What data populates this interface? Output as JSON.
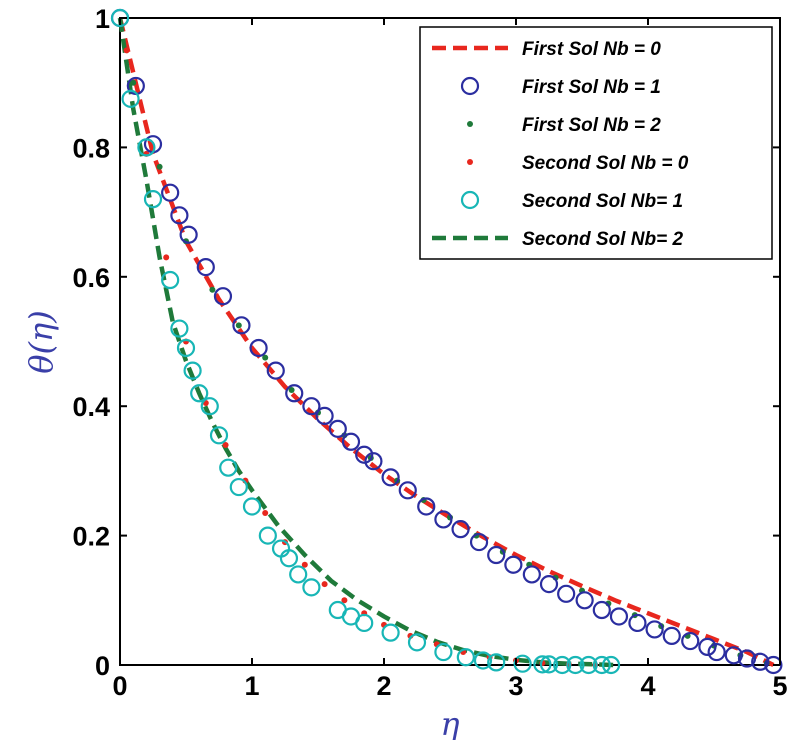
{
  "chart_data": {
    "type": "line",
    "title": "",
    "xlabel": "η",
    "ylabel": "θ(η)",
    "xlim": [
      0,
      5
    ],
    "ylim": [
      0,
      1
    ],
    "xticks": [
      "0",
      "1",
      "2",
      "3",
      "4",
      "5"
    ],
    "yticks": [
      "0",
      "0.2",
      "0.4",
      "0.6",
      "0.8",
      "1"
    ],
    "grid": false,
    "legend_position": "top-right",
    "colors": {
      "first_nb0": "#e8271e",
      "first_nb1": "#2b2ea0",
      "first_nb2": "#1f7a3a",
      "second_nb0": "#e8271e",
      "second_nb1": "#18b6b6",
      "second_nb2": "#1f7a3a"
    },
    "series": [
      {
        "name": "First Sol    Nb = 0",
        "style": "dashed-line",
        "x": [
          0,
          0.25,
          0.5,
          0.75,
          1.0,
          1.25,
          1.5,
          1.75,
          2.0,
          2.25,
          2.5,
          2.75,
          3.0,
          3.25,
          3.5,
          3.75,
          4.0,
          4.25,
          4.5,
          4.75,
          4.95
        ],
        "y": [
          1.0,
          0.79,
          0.655,
          0.565,
          0.49,
          0.43,
          0.38,
          0.335,
          0.295,
          0.26,
          0.228,
          0.198,
          0.17,
          0.145,
          0.122,
          0.1,
          0.08,
          0.06,
          0.04,
          0.02,
          0.0
        ]
      },
      {
        "name": "First Sol    Nb = 1",
        "style": "circle-markers",
        "x": [
          0.0,
          0.12,
          0.25,
          0.38,
          0.45,
          0.52,
          0.65,
          0.78,
          0.92,
          1.05,
          1.18,
          1.32,
          1.45,
          1.55,
          1.65,
          1.75,
          1.85,
          1.92,
          2.05,
          2.18,
          2.32,
          2.45,
          2.58,
          2.72,
          2.85,
          2.98,
          3.12,
          3.25,
          3.38,
          3.52,
          3.65,
          3.78,
          3.92,
          4.05,
          4.18,
          4.32,
          4.45,
          4.52,
          4.65,
          4.75,
          4.85,
          4.95
        ],
        "y": [
          1.0,
          0.895,
          0.805,
          0.73,
          0.695,
          0.665,
          0.615,
          0.57,
          0.525,
          0.49,
          0.455,
          0.42,
          0.4,
          0.385,
          0.365,
          0.345,
          0.325,
          0.315,
          0.29,
          0.27,
          0.245,
          0.225,
          0.21,
          0.19,
          0.17,
          0.155,
          0.14,
          0.125,
          0.11,
          0.1,
          0.085,
          0.075,
          0.065,
          0.055,
          0.045,
          0.037,
          0.028,
          0.02,
          0.015,
          0.01,
          0.005,
          0.0
        ]
      },
      {
        "name": "First Sol    Nb = 2",
        "style": "dot-markers",
        "x": [
          0.1,
          0.3,
          0.5,
          0.7,
          0.9,
          1.1,
          1.3,
          1.5,
          1.7,
          1.9,
          2.1,
          2.3,
          2.5,
          2.7,
          2.9,
          3.1,
          3.3,
          3.5,
          3.7,
          3.9,
          4.1,
          4.3,
          4.5,
          4.7,
          4.9
        ],
        "y": [
          0.9,
          0.77,
          0.655,
          0.58,
          0.525,
          0.475,
          0.425,
          0.39,
          0.355,
          0.32,
          0.285,
          0.255,
          0.228,
          0.2,
          0.175,
          0.155,
          0.135,
          0.115,
          0.095,
          0.077,
          0.06,
          0.045,
          0.03,
          0.015,
          0.003
        ]
      },
      {
        "name": "Second Sol Nb = 0",
        "style": "dot-markers",
        "x": [
          0.05,
          0.2,
          0.35,
          0.5,
          0.65,
          0.8,
          0.95,
          1.1,
          1.25,
          1.4,
          1.55,
          1.7,
          1.85,
          2.0,
          2.2,
          2.4,
          2.6,
          2.8,
          3.0,
          3.2,
          3.4,
          3.6
        ],
        "y": [
          0.95,
          0.79,
          0.63,
          0.5,
          0.405,
          0.34,
          0.285,
          0.235,
          0.19,
          0.155,
          0.125,
          0.1,
          0.08,
          0.062,
          0.045,
          0.032,
          0.02,
          0.012,
          0.007,
          0.003,
          0.001,
          0.0
        ]
      },
      {
        "name": "Second Sol Nb= 1",
        "style": "circle-markers",
        "x": [
          0.0,
          0.08,
          0.2,
          0.25,
          0.38,
          0.45,
          0.5,
          0.55,
          0.6,
          0.68,
          0.75,
          0.82,
          0.9,
          1.0,
          1.12,
          1.22,
          1.28,
          1.35,
          1.45,
          1.65,
          1.75,
          1.85,
          2.05,
          2.25,
          2.45,
          2.62,
          2.75,
          2.85,
          3.05,
          3.2,
          3.25,
          3.35,
          3.45,
          3.55,
          3.65,
          3.72
        ],
        "y": [
          1.0,
          0.875,
          0.8,
          0.72,
          0.595,
          0.52,
          0.49,
          0.455,
          0.42,
          0.4,
          0.355,
          0.305,
          0.275,
          0.245,
          0.2,
          0.18,
          0.165,
          0.14,
          0.12,
          0.085,
          0.075,
          0.065,
          0.05,
          0.035,
          0.02,
          0.012,
          0.007,
          0.004,
          0.002,
          0.001,
          0.001,
          0.0,
          0.0,
          0.0,
          0.0,
          0.0
        ]
      },
      {
        "name": "Second Sol Nb= 2",
        "style": "dashed-line",
        "x": [
          0,
          0.1,
          0.2,
          0.3,
          0.4,
          0.5,
          0.6,
          0.7,
          0.8,
          0.9,
          1.0,
          1.2,
          1.4,
          1.6,
          1.8,
          2.0,
          2.2,
          2.4,
          2.6,
          2.8,
          3.0,
          3.2,
          3.4,
          3.6,
          3.75
        ],
        "y": [
          1.0,
          0.86,
          0.75,
          0.63,
          0.53,
          0.47,
          0.42,
          0.375,
          0.335,
          0.3,
          0.27,
          0.215,
          0.17,
          0.13,
          0.1,
          0.075,
          0.053,
          0.036,
          0.023,
          0.014,
          0.008,
          0.004,
          0.002,
          0.001,
          0.0
        ]
      }
    ]
  }
}
